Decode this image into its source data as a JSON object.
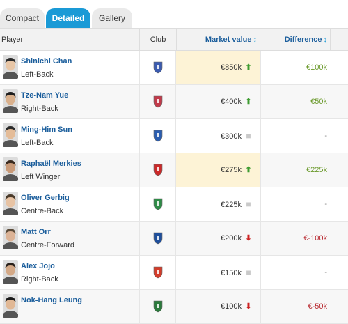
{
  "tabs": {
    "compact": "Compact",
    "detailed": "Detailed",
    "gallery": "Gallery"
  },
  "header": {
    "player": "Player",
    "club": "Club",
    "market_value": "Market value",
    "difference": "Difference",
    "sort_icon": "↕"
  },
  "rows": [
    {
      "name": "Shinichi Chan",
      "position": "Left-Back",
      "value": "€850k",
      "trend": "up",
      "diff": "€100k",
      "diff_type": "pos",
      "highlight": true,
      "crest_color": "#3b5bb0"
    },
    {
      "name": "Tze-Nam Yue",
      "position": "Right-Back",
      "value": "€400k",
      "trend": "up",
      "diff": "€50k",
      "diff_type": "pos",
      "highlight": false,
      "crest_color": "#c23a4a"
    },
    {
      "name": "Ming-Him Sun",
      "position": "Left-Back",
      "value": "€300k",
      "trend": "same",
      "diff": "-",
      "diff_type": "zero",
      "highlight": false,
      "crest_color": "#2a5db0"
    },
    {
      "name": "Raphaël Merkies",
      "position": "Left Winger",
      "value": "€275k",
      "trend": "up",
      "diff": "€225k",
      "diff_type": "pos",
      "highlight": true,
      "crest_color": "#cc2a2a"
    },
    {
      "name": "Oliver Gerbig",
      "position": "Centre-Back",
      "value": "€225k",
      "trend": "same",
      "diff": "-",
      "diff_type": "zero",
      "highlight": false,
      "crest_color": "#2e8b47"
    },
    {
      "name": "Matt Orr",
      "position": "Centre-Forward",
      "value": "€200k",
      "trend": "down",
      "diff": "€-100k",
      "diff_type": "neg",
      "highlight": false,
      "crest_color": "#1f4f9c"
    },
    {
      "name": "Alex Jojo",
      "position": "Right-Back",
      "value": "€150k",
      "trend": "same",
      "diff": "-",
      "diff_type": "zero",
      "highlight": false,
      "crest_color": "#d43c2a"
    },
    {
      "name": "Nok-Hang Leung",
      "position": "",
      "value": "€100k",
      "trend": "down",
      "diff": "€-50k",
      "diff_type": "neg",
      "highlight": false,
      "crest_color": "#2b7a3c"
    }
  ],
  "icons": {
    "up": "up-arrow-icon",
    "down": "down-arrow-icon",
    "same": "no-change-icon",
    "avatar": "player-photo",
    "crest": "club-crest-icon"
  }
}
